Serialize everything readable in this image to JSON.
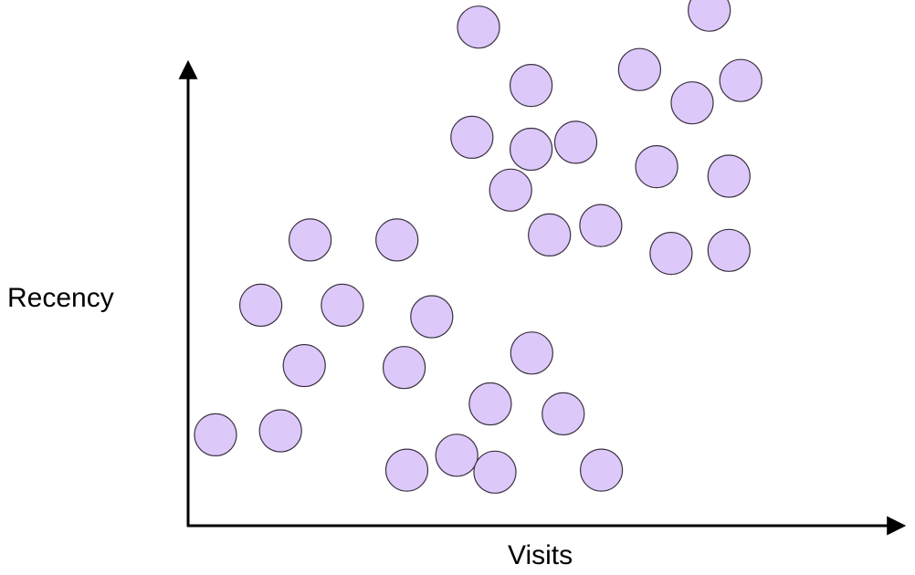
{
  "chart_data": {
    "type": "scatter",
    "title": "",
    "xlabel": "Visits",
    "ylabel": "Recency",
    "xlim": [
      0,
      100
    ],
    "ylim": [
      0,
      100
    ],
    "grid": false,
    "marker_fill": "#dcc9f9",
    "marker_stroke": "#3b3140",
    "axis_color": "#000000",
    "points": [
      {
        "x": 4.3,
        "y": 15.5
      },
      {
        "x": 14.2,
        "y": 16.3
      },
      {
        "x": 11.2,
        "y": 41.5
      },
      {
        "x": 17.8,
        "y": 29.4
      },
      {
        "x": 18.7,
        "y": 54.6
      },
      {
        "x": 23.6,
        "y": 41.5
      },
      {
        "x": 31.9,
        "y": 54.6
      },
      {
        "x": 33.0,
        "y": 29.0
      },
      {
        "x": 37.2,
        "y": 39.2
      },
      {
        "x": 33.4,
        "y": 8.4
      },
      {
        "x": 41.0,
        "y": 11.4
      },
      {
        "x": 46.8,
        "y": 8.0
      },
      {
        "x": 46.1,
        "y": 21.7
      },
      {
        "x": 52.4,
        "y": 31.9
      },
      {
        "x": 57.2,
        "y": 19.7
      },
      {
        "x": 63.0,
        "y": 8.4
      },
      {
        "x": 44.3,
        "y": 97.3
      },
      {
        "x": 52.3,
        "y": 85.6
      },
      {
        "x": 43.3,
        "y": 75.2
      },
      {
        "x": 52.3,
        "y": 72.8
      },
      {
        "x": 59.1,
        "y": 74.2
      },
      {
        "x": 49.2,
        "y": 64.6
      },
      {
        "x": 55.1,
        "y": 55.6
      },
      {
        "x": 62.9,
        "y": 57.5
      },
      {
        "x": 68.8,
        "y": 88.8
      },
      {
        "x": 71.4,
        "y": 69.3
      },
      {
        "x": 76.8,
        "y": 82.1
      },
      {
        "x": 79.4,
        "y": 100.7
      },
      {
        "x": 84.2,
        "y": 86.6
      },
      {
        "x": 82.4,
        "y": 67.4
      },
      {
        "x": 73.6,
        "y": 51.9
      },
      {
        "x": 82.4,
        "y": 52.5
      }
    ]
  }
}
